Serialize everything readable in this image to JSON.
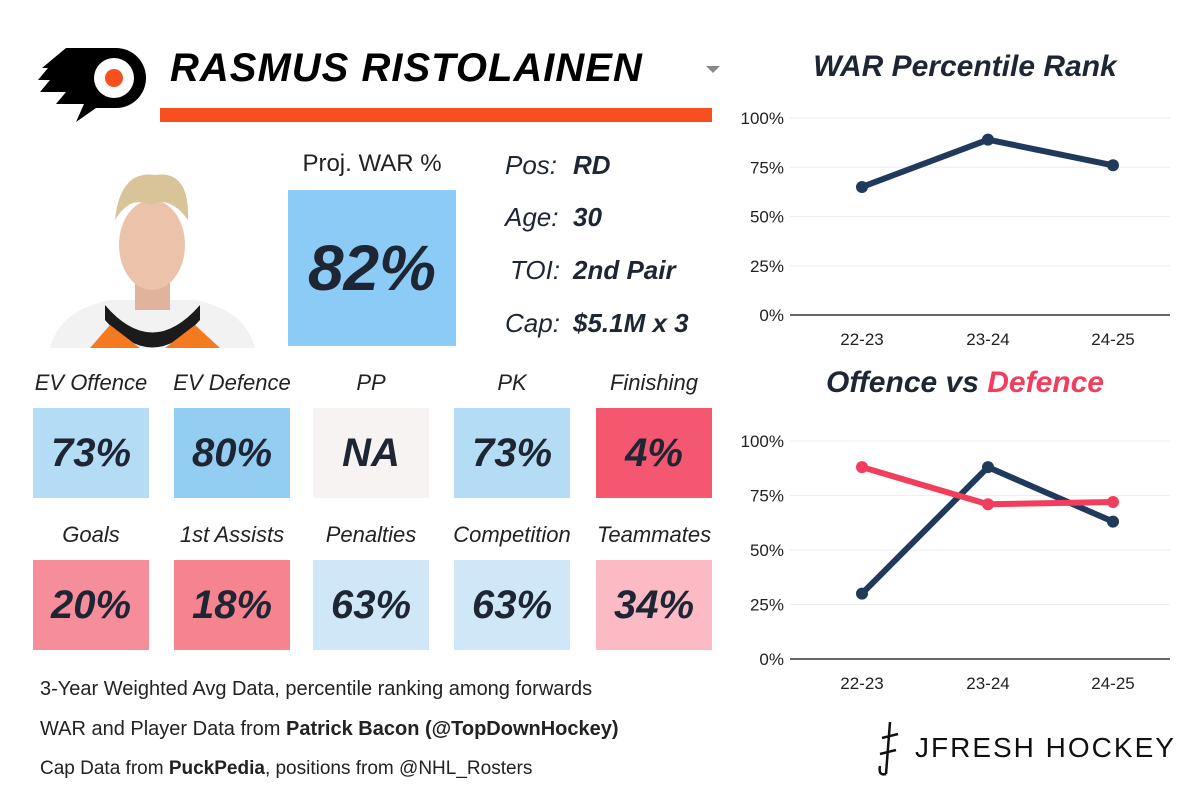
{
  "header": {
    "player_name": "RASMUS RISTOLAINEN",
    "team_logo": "philadelphia-flyers-logo"
  },
  "colors": {
    "accent": "#f74f1e",
    "navy": "#1f3a5a",
    "red": "#f23e5c"
  },
  "proj_war": {
    "label": "Proj. WAR %",
    "value": "82%"
  },
  "info": [
    {
      "label": "Pos:",
      "value": "RD"
    },
    {
      "label": "Age:",
      "value": "30"
    },
    {
      "label": "TOI:",
      "value": "2nd Pair"
    },
    {
      "label": "Cap:",
      "value": "$5.1M x 3"
    }
  ],
  "tiles": [
    {
      "label": "EV Offence",
      "value": "73%",
      "color": "#b5dcf5"
    },
    {
      "label": "EV Defence",
      "value": "80%",
      "color": "#93cdf2"
    },
    {
      "label": "PP",
      "value": "NA",
      "color": "#f7f3f3"
    },
    {
      "label": "PK",
      "value": "73%",
      "color": "#b5dcf5"
    },
    {
      "label": "Finishing",
      "value": "4%",
      "color": "#f45770"
    },
    {
      "label": "Goals",
      "value": "20%",
      "color": "#f68d9b"
    },
    {
      "label": "1st Assists",
      "value": "18%",
      "color": "#f5848f"
    },
    {
      "label": "Penalties",
      "value": "63%",
      "color": "#cfe7f6"
    },
    {
      "label": "Competition",
      "value": "63%",
      "color": "#cfe7f6"
    },
    {
      "label": "Teammates",
      "value": "34%",
      "color": "#fbbac4"
    }
  ],
  "footer": {
    "line1": "3-Year Weighted Avg Data, percentile ranking among forwards",
    "line2_pre": "WAR and Player Data from ",
    "line2_bold": "Patrick Bacon (@TopDownHockey)",
    "line3_pre": "Cap Data from ",
    "line3_bold": "PuckPedia",
    "line3_post": ", positions from @NHL_Rosters",
    "brand": "JFRESH HOCKEY"
  },
  "chart_data": [
    {
      "type": "line",
      "title": "WAR Percentile Rank",
      "categories": [
        "22-23",
        "23-24",
        "24-25"
      ],
      "yticks": [
        "0%",
        "25%",
        "50%",
        "75%",
        "100%"
      ],
      "ylim": [
        0,
        100
      ],
      "grid": true,
      "series": [
        {
          "values": [
            65,
            89,
            76
          ],
          "color": "#1f3a5a"
        }
      ]
    },
    {
      "type": "line",
      "title_parts": [
        "Offence",
        " vs ",
        "Defence"
      ],
      "categories": [
        "22-23",
        "23-24",
        "24-25"
      ],
      "yticks": [
        "0%",
        "25%",
        "50%",
        "75%",
        "100%"
      ],
      "ylim": [
        0,
        100
      ],
      "grid": true,
      "series": [
        {
          "name": "Offence",
          "values": [
            30,
            88,
            63
          ],
          "color": "#1f3a5a"
        },
        {
          "name": "Defence",
          "values": [
            88,
            71,
            72
          ],
          "color": "#f23e5c"
        }
      ]
    }
  ]
}
